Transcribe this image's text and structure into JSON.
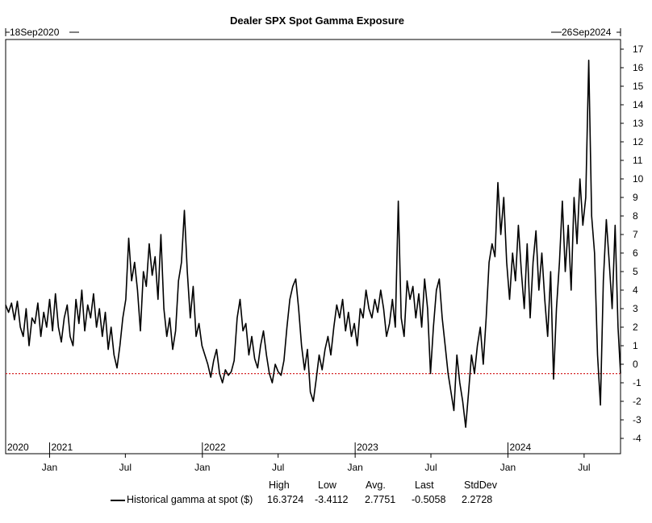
{
  "chart_data": {
    "type": "line",
    "title": "Dealer SPX Spot Gamma Exposure",
    "start_label": "18Sep2020",
    "end_label": "26Sep2024",
    "ylim": [
      -4,
      17
    ],
    "y_ticks": [
      -4,
      -3,
      -2,
      -1,
      0,
      1,
      2,
      3,
      4,
      5,
      6,
      7,
      8,
      9,
      10,
      11,
      12,
      13,
      14,
      15,
      16,
      17
    ],
    "x_range": [
      "2020-09-18",
      "2024-09-26"
    ],
    "year_labels": [
      {
        "label": "2020",
        "date": "2020-09-18"
      },
      {
        "label": "2021",
        "date": "2021-01-01"
      },
      {
        "label": "2022",
        "date": "2022-01-01"
      },
      {
        "label": "2023",
        "date": "2023-01-01"
      },
      {
        "label": "2024",
        "date": "2024-01-01"
      }
    ],
    "month_ticks": [
      {
        "label": "Jan",
        "date": "2021-01-01"
      },
      {
        "label": "Jul",
        "date": "2021-07-01"
      },
      {
        "label": "Jan",
        "date": "2022-01-01"
      },
      {
        "label": "Jul",
        "date": "2022-07-01"
      },
      {
        "label": "Jan",
        "date": "2023-01-01"
      },
      {
        "label": "Jul",
        "date": "2023-07-01"
      },
      {
        "label": "Jan",
        "date": "2024-01-01"
      },
      {
        "label": "Jul",
        "date": "2024-07-01"
      }
    ],
    "reference_line": {
      "value": -0.5058,
      "color": "#d62728",
      "style": "dotted"
    },
    "series": [
      {
        "name": "Historical gamma at spot ($)",
        "color": "#000000",
        "points": [
          [
            "2020-09-18",
            3.2
          ],
          [
            "2020-09-25",
            2.8
          ],
          [
            "2020-10-02",
            3.3
          ],
          [
            "2020-10-09",
            2.4
          ],
          [
            "2020-10-16",
            3.4
          ],
          [
            "2020-10-23",
            2.0
          ],
          [
            "2020-10-30",
            1.5
          ],
          [
            "2020-11-06",
            3.0
          ],
          [
            "2020-11-13",
            1.0
          ],
          [
            "2020-11-20",
            2.5
          ],
          [
            "2020-11-27",
            2.2
          ],
          [
            "2020-12-04",
            3.3
          ],
          [
            "2020-12-11",
            1.5
          ],
          [
            "2020-12-18",
            2.8
          ],
          [
            "2020-12-25",
            2.0
          ],
          [
            "2021-01-01",
            3.5
          ],
          [
            "2021-01-08",
            1.8
          ],
          [
            "2021-01-15",
            3.8
          ],
          [
            "2021-01-22",
            2.0
          ],
          [
            "2021-01-29",
            1.2
          ],
          [
            "2021-02-05",
            2.5
          ],
          [
            "2021-02-12",
            3.2
          ],
          [
            "2021-02-19",
            1.5
          ],
          [
            "2021-02-26",
            1.0
          ],
          [
            "2021-03-05",
            3.5
          ],
          [
            "2021-03-12",
            2.2
          ],
          [
            "2021-03-19",
            4.0
          ],
          [
            "2021-03-26",
            1.8
          ],
          [
            "2021-04-02",
            3.2
          ],
          [
            "2021-04-09",
            2.5
          ],
          [
            "2021-04-16",
            3.8
          ],
          [
            "2021-04-23",
            2.0
          ],
          [
            "2021-04-30",
            3.0
          ],
          [
            "2021-05-07",
            1.5
          ],
          [
            "2021-05-14",
            2.8
          ],
          [
            "2021-05-21",
            0.8
          ],
          [
            "2021-05-28",
            2.0
          ],
          [
            "2021-06-04",
            0.5
          ],
          [
            "2021-06-11",
            -0.2
          ],
          [
            "2021-06-18",
            1.0
          ],
          [
            "2021-06-25",
            2.5
          ],
          [
            "2021-07-02",
            3.5
          ],
          [
            "2021-07-09",
            6.8
          ],
          [
            "2021-07-16",
            4.5
          ],
          [
            "2021-07-23",
            5.5
          ],
          [
            "2021-07-30",
            4.0
          ],
          [
            "2021-08-06",
            1.8
          ],
          [
            "2021-08-13",
            5.0
          ],
          [
            "2021-08-20",
            4.2
          ],
          [
            "2021-08-27",
            6.5
          ],
          [
            "2021-09-03",
            4.8
          ],
          [
            "2021-09-10",
            5.8
          ],
          [
            "2021-09-17",
            3.5
          ],
          [
            "2021-09-24",
            7.0
          ],
          [
            "2021-10-01",
            3.0
          ],
          [
            "2021-10-08",
            1.5
          ],
          [
            "2021-10-15",
            2.5
          ],
          [
            "2021-10-22",
            0.8
          ],
          [
            "2021-10-29",
            1.8
          ],
          [
            "2021-11-05",
            4.5
          ],
          [
            "2021-11-12",
            5.5
          ],
          [
            "2021-11-19",
            8.3
          ],
          [
            "2021-11-26",
            5.0
          ],
          [
            "2021-12-03",
            2.5
          ],
          [
            "2021-12-10",
            4.2
          ],
          [
            "2021-12-17",
            1.5
          ],
          [
            "2021-12-24",
            2.2
          ],
          [
            "2021-12-31",
            1.0
          ],
          [
            "2022-01-07",
            0.5
          ],
          [
            "2022-01-14",
            0.0
          ],
          [
            "2022-01-21",
            -0.7
          ],
          [
            "2022-01-28",
            0.2
          ],
          [
            "2022-02-04",
            0.8
          ],
          [
            "2022-02-11",
            -0.5
          ],
          [
            "2022-02-18",
            -1.0
          ],
          [
            "2022-02-25",
            -0.3
          ],
          [
            "2022-03-04",
            -0.6
          ],
          [
            "2022-03-11",
            -0.4
          ],
          [
            "2022-03-18",
            0.2
          ],
          [
            "2022-03-25",
            2.5
          ],
          [
            "2022-04-01",
            3.5
          ],
          [
            "2022-04-08",
            1.8
          ],
          [
            "2022-04-15",
            2.2
          ],
          [
            "2022-04-22",
            0.5
          ],
          [
            "2022-04-29",
            1.5
          ],
          [
            "2022-05-06",
            0.3
          ],
          [
            "2022-05-13",
            -0.2
          ],
          [
            "2022-05-20",
            1.0
          ],
          [
            "2022-05-27",
            1.8
          ],
          [
            "2022-06-03",
            0.5
          ],
          [
            "2022-06-10",
            -0.5
          ],
          [
            "2022-06-17",
            -1.0
          ],
          [
            "2022-06-24",
            0.0
          ],
          [
            "2022-07-01",
            -0.4
          ],
          [
            "2022-07-08",
            -0.6
          ],
          [
            "2022-07-15",
            0.2
          ],
          [
            "2022-07-22",
            2.0
          ],
          [
            "2022-07-29",
            3.5
          ],
          [
            "2022-08-05",
            4.2
          ],
          [
            "2022-08-12",
            4.6
          ],
          [
            "2022-08-19",
            3.0
          ],
          [
            "2022-08-26",
            1.0
          ],
          [
            "2022-09-02",
            -0.3
          ],
          [
            "2022-09-09",
            0.8
          ],
          [
            "2022-09-16",
            -1.5
          ],
          [
            "2022-09-23",
            -2.0
          ],
          [
            "2022-09-30",
            -0.8
          ],
          [
            "2022-10-07",
            0.5
          ],
          [
            "2022-10-14",
            -0.3
          ],
          [
            "2022-10-21",
            0.8
          ],
          [
            "2022-10-28",
            1.5
          ],
          [
            "2022-11-04",
            0.5
          ],
          [
            "2022-11-11",
            2.0
          ],
          [
            "2022-11-18",
            3.2
          ],
          [
            "2022-11-25",
            2.5
          ],
          [
            "2022-12-02",
            3.5
          ],
          [
            "2022-12-09",
            1.8
          ],
          [
            "2022-12-16",
            2.8
          ],
          [
            "2022-12-23",
            1.5
          ],
          [
            "2022-12-30",
            2.2
          ],
          [
            "2023-01-06",
            1.0
          ],
          [
            "2023-01-13",
            3.0
          ],
          [
            "2023-01-20",
            2.5
          ],
          [
            "2023-01-27",
            4.0
          ],
          [
            "2023-02-03",
            3.0
          ],
          [
            "2023-02-10",
            2.5
          ],
          [
            "2023-02-17",
            3.5
          ],
          [
            "2023-02-24",
            2.8
          ],
          [
            "2023-03-03",
            4.0
          ],
          [
            "2023-03-10",
            3.0
          ],
          [
            "2023-03-17",
            1.5
          ],
          [
            "2023-03-24",
            2.2
          ],
          [
            "2023-03-31",
            3.5
          ],
          [
            "2023-04-07",
            2.0
          ],
          [
            "2023-04-14",
            8.8
          ],
          [
            "2023-04-21",
            2.5
          ],
          [
            "2023-04-28",
            1.5
          ],
          [
            "2023-05-05",
            4.5
          ],
          [
            "2023-05-12",
            3.5
          ],
          [
            "2023-05-19",
            4.2
          ],
          [
            "2023-05-26",
            2.5
          ],
          [
            "2023-06-02",
            3.8
          ],
          [
            "2023-06-09",
            2.0
          ],
          [
            "2023-06-16",
            4.6
          ],
          [
            "2023-06-23",
            3.0
          ],
          [
            "2023-06-30",
            -0.5
          ],
          [
            "2023-07-07",
            2.0
          ],
          [
            "2023-07-14",
            4.0
          ],
          [
            "2023-07-21",
            4.6
          ],
          [
            "2023-07-28",
            2.5
          ],
          [
            "2023-08-04",
            1.0
          ],
          [
            "2023-08-11",
            -0.5
          ],
          [
            "2023-08-18",
            -1.5
          ],
          [
            "2023-08-25",
            -2.5
          ],
          [
            "2023-09-01",
            0.5
          ],
          [
            "2023-09-08",
            -1.0
          ],
          [
            "2023-09-15",
            -2.0
          ],
          [
            "2023-09-22",
            -3.4
          ],
          [
            "2023-09-29",
            -1.5
          ],
          [
            "2023-10-06",
            0.5
          ],
          [
            "2023-10-13",
            -0.5
          ],
          [
            "2023-10-20",
            1.0
          ],
          [
            "2023-10-27",
            2.0
          ],
          [
            "2023-11-03",
            0.0
          ],
          [
            "2023-11-10",
            2.5
          ],
          [
            "2023-11-17",
            5.5
          ],
          [
            "2023-11-24",
            6.5
          ],
          [
            "2023-12-01",
            5.8
          ],
          [
            "2023-12-08",
            9.8
          ],
          [
            "2023-12-15",
            7.0
          ],
          [
            "2023-12-22",
            9.0
          ],
          [
            "2023-12-29",
            5.5
          ],
          [
            "2024-01-05",
            3.5
          ],
          [
            "2024-01-12",
            6.0
          ],
          [
            "2024-01-19",
            4.5
          ],
          [
            "2024-01-26",
            7.5
          ],
          [
            "2024-02-02",
            5.0
          ],
          [
            "2024-02-09",
            3.0
          ],
          [
            "2024-02-16",
            6.5
          ],
          [
            "2024-02-23",
            2.5
          ],
          [
            "2024-03-01",
            5.5
          ],
          [
            "2024-03-08",
            7.2
          ],
          [
            "2024-03-15",
            4.0
          ],
          [
            "2024-03-22",
            6.0
          ],
          [
            "2024-03-29",
            3.5
          ],
          [
            "2024-04-05",
            1.5
          ],
          [
            "2024-04-12",
            5.0
          ],
          [
            "2024-04-19",
            -0.8
          ],
          [
            "2024-04-26",
            3.0
          ],
          [
            "2024-05-03",
            5.5
          ],
          [
            "2024-05-10",
            8.8
          ],
          [
            "2024-05-17",
            5.0
          ],
          [
            "2024-05-24",
            7.5
          ],
          [
            "2024-05-31",
            4.0
          ],
          [
            "2024-06-07",
            9.0
          ],
          [
            "2024-06-14",
            6.5
          ],
          [
            "2024-06-21",
            10.0
          ],
          [
            "2024-06-28",
            7.5
          ],
          [
            "2024-07-05",
            9.0
          ],
          [
            "2024-07-12",
            16.4
          ],
          [
            "2024-07-19",
            8.0
          ],
          [
            "2024-07-26",
            6.0
          ],
          [
            "2024-08-02",
            0.5
          ],
          [
            "2024-08-09",
            -2.2
          ],
          [
            "2024-08-16",
            4.5
          ],
          [
            "2024-08-23",
            7.8
          ],
          [
            "2024-08-30",
            5.5
          ],
          [
            "2024-09-06",
            3.0
          ],
          [
            "2024-09-13",
            7.5
          ],
          [
            "2024-09-20",
            2.0
          ],
          [
            "2024-09-26",
            -0.5
          ]
        ]
      }
    ]
  },
  "legend": {
    "headers": [
      "High",
      "Low",
      "Avg.",
      "Last",
      "StdDev"
    ],
    "series_label": "Historical gamma at spot ($)",
    "values": [
      "16.3724",
      "-3.4112",
      "2.7751",
      "-0.5058",
      "2.2728"
    ]
  }
}
